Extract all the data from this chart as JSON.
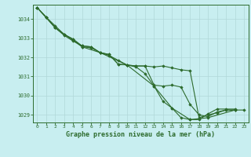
{
  "title": "Graphe pression niveau de la mer (hPa)",
  "bg_color": "#c8eef0",
  "grid_color": "#b0d8d8",
  "line_color": "#2d6b2d",
  "marker_color": "#2d6b2d",
  "xlim": [
    -0.5,
    23.5
  ],
  "ylim": [
    1028.6,
    1034.75
  ],
  "yticks": [
    1029,
    1030,
    1031,
    1032,
    1033,
    1034
  ],
  "xticks": [
    0,
    1,
    2,
    3,
    4,
    5,
    6,
    7,
    8,
    9,
    10,
    11,
    12,
    13,
    14,
    15,
    16,
    17,
    18,
    19,
    20,
    21,
    22,
    23
  ],
  "series": [
    [
      1034.6,
      1034.1,
      1033.65,
      1033.2,
      1032.95,
      1032.55,
      1032.5,
      1032.25,
      1032.1,
      1031.85,
      1031.6,
      1031.5,
      1031.15,
      1030.5,
      1029.7,
      1029.35,
      1028.85,
      1028.75,
      1028.75,
      1029.05,
      1029.3,
      1029.3,
      1029.3,
      null
    ],
    [
      1034.6,
      1034.1,
      1033.55,
      1033.2,
      1032.95,
      1032.6,
      1032.55,
      1032.25,
      1032.15,
      1031.65,
      1031.6,
      1031.55,
      1031.55,
      1030.55,
      1030.5,
      1030.55,
      1030.45,
      1029.55,
      1029.0,
      1028.9,
      1029.15,
      1029.25,
      1029.25,
      null
    ],
    [
      1034.6,
      1034.1,
      1033.55,
      1033.15,
      1032.85,
      1032.6,
      1032.55,
      1032.25,
      1032.15,
      1031.65,
      1031.6,
      1031.55,
      1031.55,
      1031.5,
      1031.55,
      1031.45,
      1031.35,
      1031.3,
      1028.85,
      1029.0,
      1029.1,
      1029.25,
      1029.25,
      null
    ],
    [
      1034.6,
      null,
      1033.55,
      null,
      null,
      1032.55,
      null,
      1032.25,
      null,
      null,
      1031.6,
      null,
      null,
      1030.5,
      null,
      1029.35,
      null,
      1028.75,
      null,
      1028.85,
      null,
      null,
      1029.25,
      1029.25
    ]
  ]
}
